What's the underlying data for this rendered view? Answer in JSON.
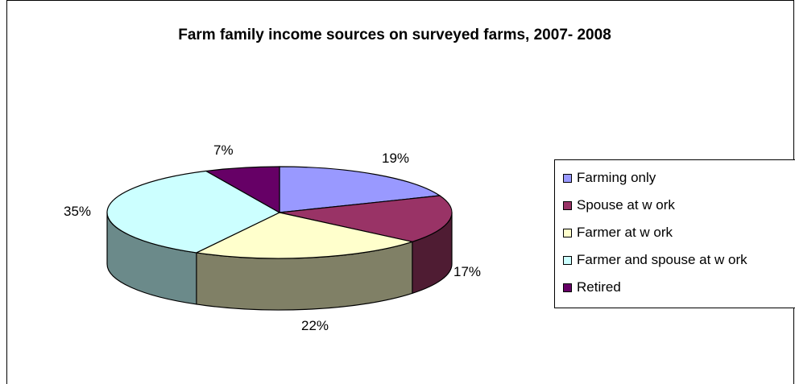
{
  "chart_data": {
    "type": "pie",
    "title": "Farm family income sources on surveyed farms, 2007- 2008",
    "categories": [
      "Farming only",
      "Spouse at w ork",
      "Farmer at w ork",
      "Farmer and spouse at w ork",
      "Retired"
    ],
    "values": [
      19,
      17,
      22,
      35,
      7
    ],
    "labels": [
      "19%",
      "17%",
      "22%",
      "35%",
      "7%"
    ],
    "colors": [
      "#9999FF",
      "#993366",
      "#FFFFCC",
      "#CCFFFF",
      "#660066"
    ],
    "side_colors": [
      "#6B6BB3",
      "#4F1C33",
      "#808066",
      "#6B8A8A",
      "#3C003C"
    ],
    "style": "3d",
    "legend": "right"
  }
}
